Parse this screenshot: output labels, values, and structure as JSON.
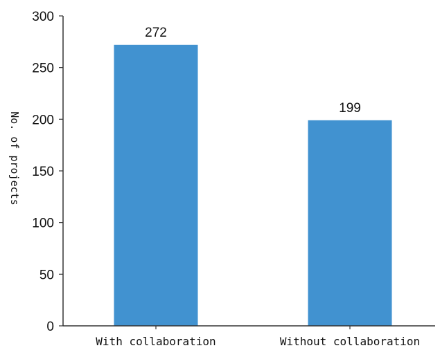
{
  "chart_data": {
    "type": "bar",
    "title": "",
    "xlabel": "",
    "ylabel": "No. of projects",
    "categories": [
      "With collaboration",
      "Without collaboration"
    ],
    "values": [
      272,
      199
    ],
    "data_labels": [
      "272",
      "199"
    ],
    "ylim": [
      0,
      300
    ],
    "yticks": [
      0,
      50,
      100,
      150,
      200,
      250,
      300
    ],
    "grid": false,
    "legend": "none",
    "bar_color": "#4192d0"
  }
}
